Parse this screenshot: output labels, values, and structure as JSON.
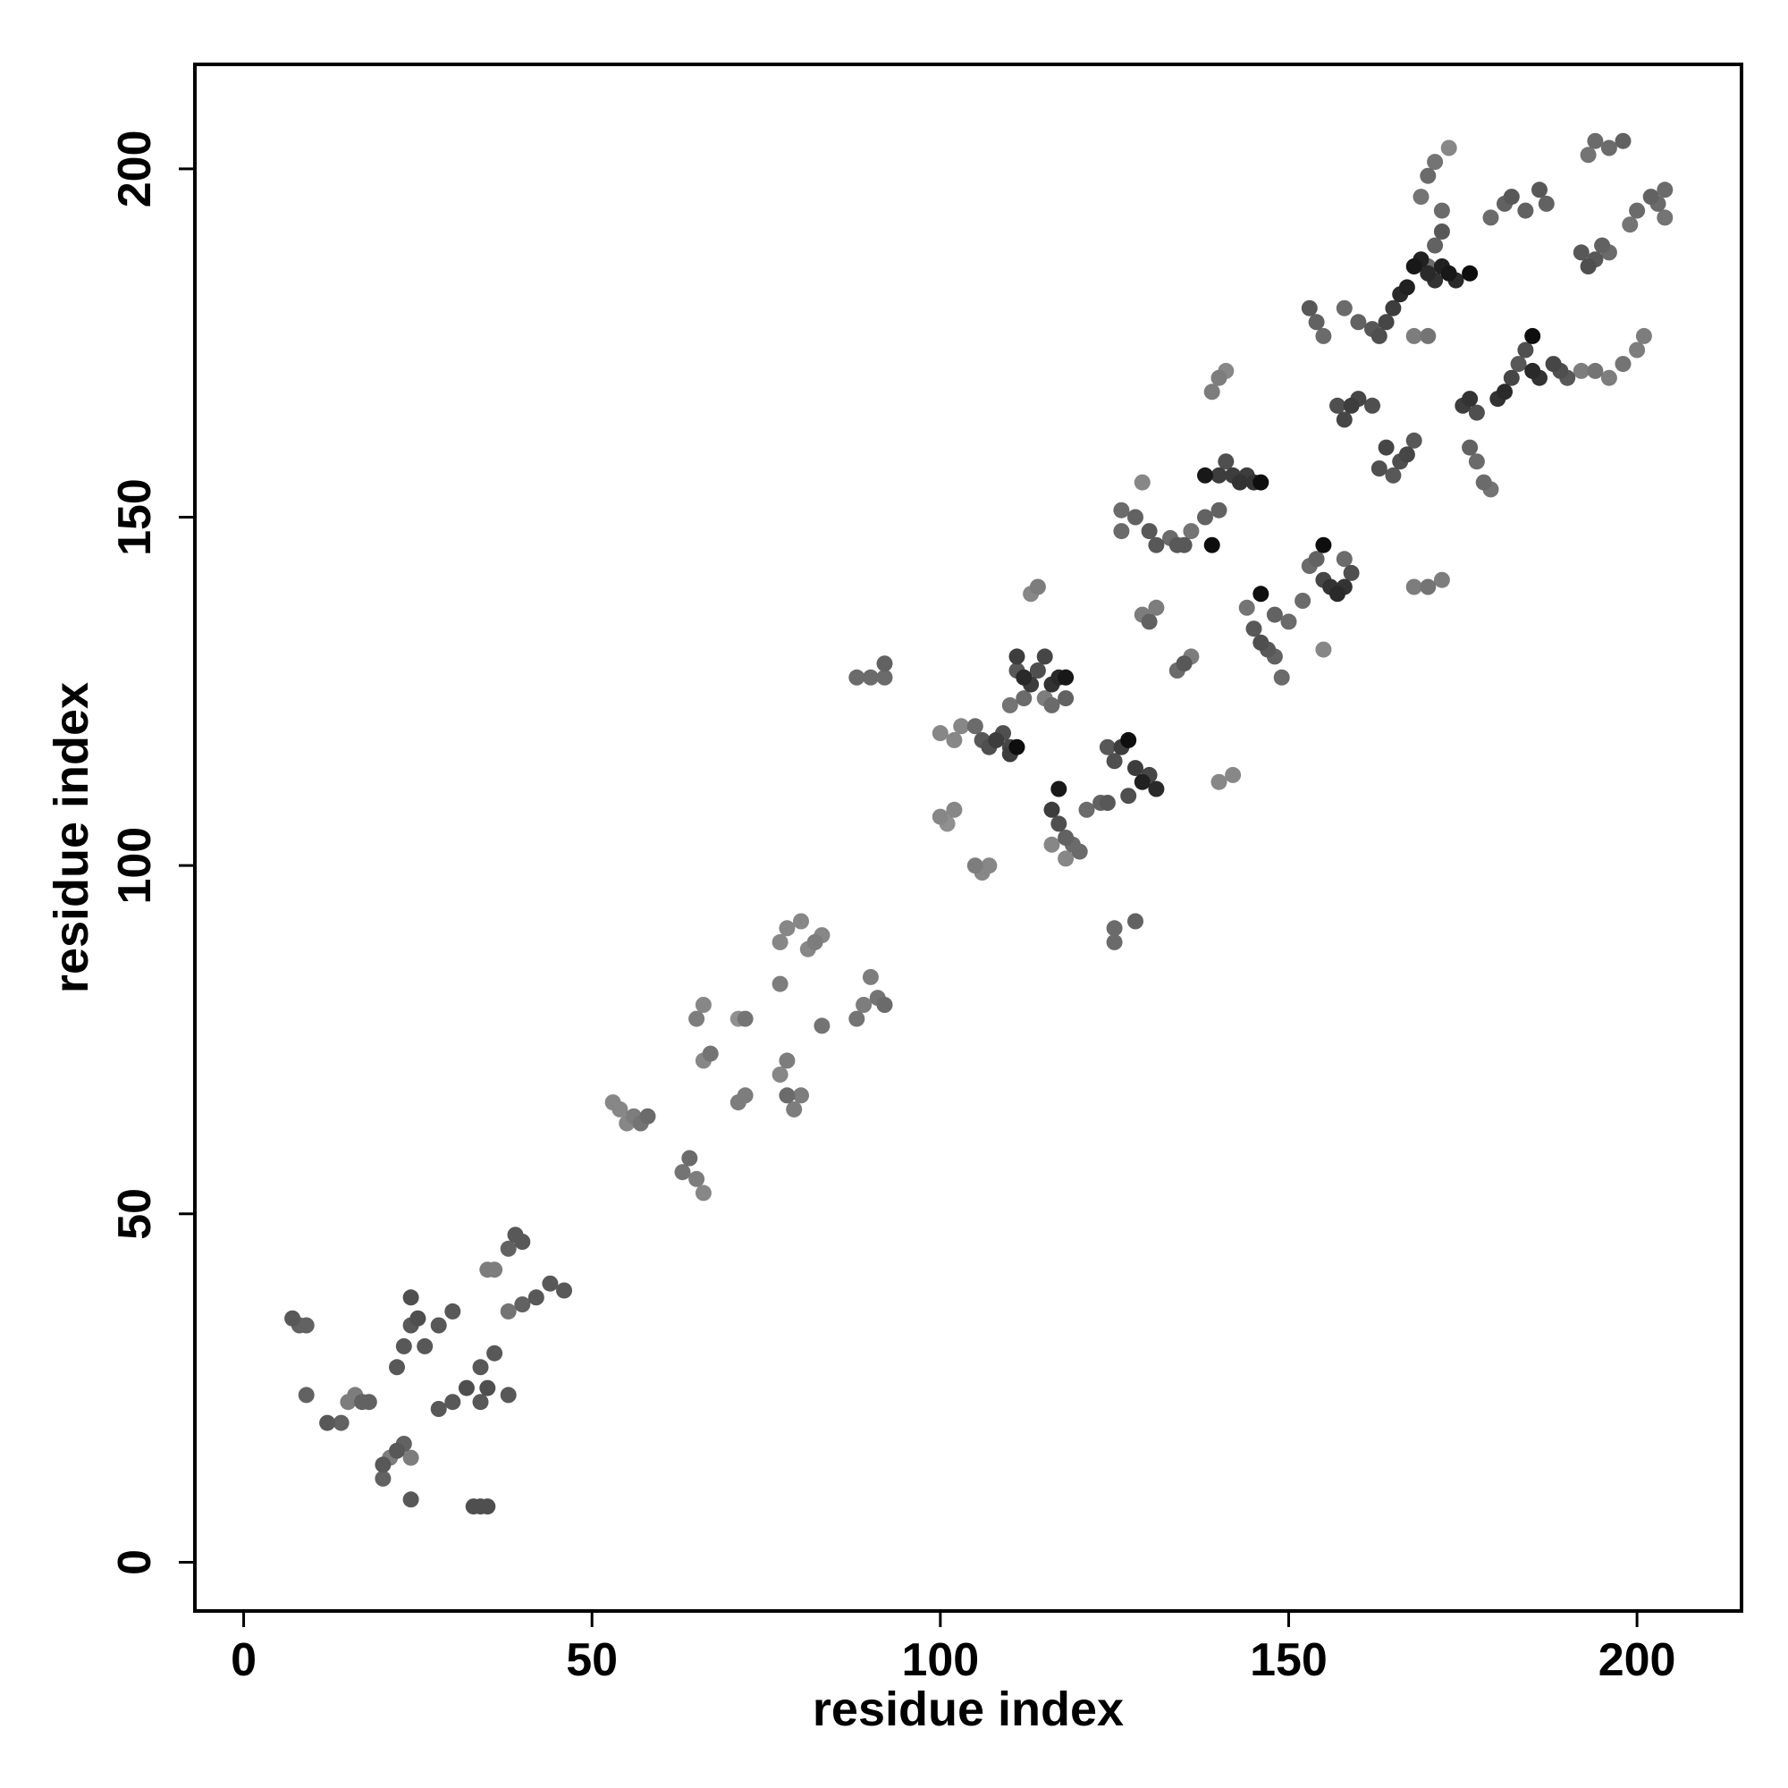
{
  "chart_data": {
    "type": "scatter",
    "title": "",
    "xlabel": "residue index",
    "ylabel": "residue index",
    "xlim": [
      -7,
      215
    ],
    "ylim": [
      -7,
      215
    ],
    "xticks": [
      0,
      50,
      100,
      150,
      200
    ],
    "yticks": [
      0,
      50,
      100,
      150,
      200
    ],
    "grid": false,
    "legend": "none",
    "point_color_scale": "grayscale (light = low, dark = high)",
    "points": [
      [
        7,
        35,
        0.55
      ],
      [
        8,
        34,
        0.5
      ],
      [
        9,
        34,
        0.5
      ],
      [
        9,
        24,
        0.5
      ],
      [
        12,
        20,
        0.55
      ],
      [
        14,
        20,
        0.5
      ],
      [
        15,
        23,
        0.35
      ],
      [
        16,
        24,
        0.35
      ],
      [
        17,
        23,
        0.5
      ],
      [
        18,
        23,
        0.5
      ],
      [
        20,
        12,
        0.5
      ],
      [
        20,
        14,
        0.55
      ],
      [
        21,
        15,
        0.35
      ],
      [
        22,
        16,
        0.55
      ],
      [
        23,
        17,
        0.5
      ],
      [
        24,
        15,
        0.35
      ],
      [
        24,
        9,
        0.55
      ],
      [
        22,
        28,
        0.55
      ],
      [
        23,
        31,
        0.55
      ],
      [
        24,
        34,
        0.55
      ],
      [
        25,
        35,
        0.6
      ],
      [
        24,
        38,
        0.6
      ],
      [
        26,
        31,
        0.55
      ],
      [
        28,
        34,
        0.55
      ],
      [
        30,
        36,
        0.55
      ],
      [
        28,
        22,
        0.55
      ],
      [
        30,
        23,
        0.55
      ],
      [
        32,
        25,
        0.6
      ],
      [
        33,
        8,
        0.6
      ],
      [
        34,
        8,
        0.6
      ],
      [
        35,
        8,
        0.6
      ],
      [
        34,
        23,
        0.55
      ],
      [
        35,
        25,
        0.6
      ],
      [
        34,
        28,
        0.55
      ],
      [
        36,
        30,
        0.55
      ],
      [
        38,
        24,
        0.55
      ],
      [
        35,
        42,
        0.35
      ],
      [
        36,
        42,
        0.35
      ],
      [
        38,
        45,
        0.5
      ],
      [
        39,
        47,
        0.55
      ],
      [
        40,
        46,
        0.55
      ],
      [
        38,
        36,
        0.4
      ],
      [
        40,
        37,
        0.5
      ],
      [
        42,
        38,
        0.55
      ],
      [
        44,
        40,
        0.55
      ],
      [
        46,
        39,
        0.55
      ],
      [
        53,
        66,
        0.3
      ],
      [
        54,
        65,
        0.3
      ],
      [
        55,
        63,
        0.3
      ],
      [
        56,
        64,
        0.35
      ],
      [
        57,
        63,
        0.4
      ],
      [
        58,
        64,
        0.45
      ],
      [
        63,
        56,
        0.4
      ],
      [
        64,
        58,
        0.45
      ],
      [
        65,
        55,
        0.35
      ],
      [
        66,
        53,
        0.3
      ],
      [
        65,
        78,
        0.35
      ],
      [
        66,
        80,
        0.3
      ],
      [
        66,
        72,
        0.3
      ],
      [
        67,
        73,
        0.4
      ],
      [
        71,
        66,
        0.35
      ],
      [
        72,
        67,
        0.35
      ],
      [
        71,
        78,
        0.25
      ],
      [
        72,
        78,
        0.4
      ],
      [
        77,
        83,
        0.35
      ],
      [
        77,
        70,
        0.3
      ],
      [
        78,
        72,
        0.35
      ],
      [
        78,
        67,
        0.45
      ],
      [
        79,
        65,
        0.35
      ],
      [
        80,
        67,
        0.35
      ],
      [
        77,
        89,
        0.3
      ],
      [
        78,
        91,
        0.3
      ],
      [
        80,
        92,
        0.3
      ],
      [
        81,
        88,
        0.3
      ],
      [
        82,
        89,
        0.35
      ],
      [
        83,
        90,
        0.3
      ],
      [
        83,
        77,
        0.4
      ],
      [
        88,
        78,
        0.4
      ],
      [
        89,
        80,
        0.35
      ],
      [
        90,
        84,
        0.35
      ],
      [
        91,
        81,
        0.4
      ],
      [
        92,
        80,
        0.45
      ],
      [
        88,
        127,
        0.45
      ],
      [
        90,
        127,
        0.45
      ],
      [
        92,
        129,
        0.5
      ],
      [
        92,
        127,
        0.45
      ],
      [
        100,
        107,
        0.3
      ],
      [
        101,
        106,
        0.25
      ],
      [
        102,
        108,
        0.3
      ],
      [
        100,
        119,
        0.3
      ],
      [
        102,
        118,
        0.3
      ],
      [
        103,
        120,
        0.3
      ],
      [
        105,
        120,
        0.45
      ],
      [
        106,
        118,
        0.55
      ],
      [
        107,
        117,
        0.6
      ],
      [
        108,
        118,
        0.7
      ],
      [
        109,
        119,
        0.6
      ],
      [
        110,
        117,
        0.65
      ],
      [
        110,
        116,
        0.7
      ],
      [
        111,
        117,
        0.95
      ],
      [
        105,
        100,
        0.35
      ],
      [
        106,
        99,
        0.3
      ],
      [
        107,
        100,
        0.3
      ],
      [
        110,
        123,
        0.4
      ],
      [
        112,
        124,
        0.45
      ],
      [
        111,
        128,
        0.55
      ],
      [
        111,
        130,
        0.7
      ],
      [
        112,
        127,
        0.8
      ],
      [
        113,
        126,
        0.7
      ],
      [
        114,
        128,
        0.6
      ],
      [
        115,
        130,
        0.65
      ],
      [
        116,
        126,
        0.75
      ],
      [
        117,
        127,
        0.8
      ],
      [
        118,
        127,
        0.9
      ],
      [
        113,
        139,
        0.3
      ],
      [
        114,
        140,
        0.35
      ],
      [
        115,
        124,
        0.35
      ],
      [
        116,
        123,
        0.45
      ],
      [
        118,
        124,
        0.5
      ],
      [
        117,
        111,
        0.9
      ],
      [
        116,
        108,
        0.7
      ],
      [
        117,
        106,
        0.6
      ],
      [
        118,
        104,
        0.5
      ],
      [
        119,
        103,
        0.45
      ],
      [
        120,
        102,
        0.45
      ],
      [
        116,
        103,
        0.3
      ],
      [
        118,
        101,
        0.3
      ],
      [
        121,
        108,
        0.45
      ],
      [
        123,
        109,
        0.5
      ],
      [
        124,
        109,
        0.55
      ],
      [
        124,
        117,
        0.55
      ],
      [
        125,
        115,
        0.6
      ],
      [
        126,
        117,
        0.7
      ],
      [
        127,
        118,
        0.95
      ],
      [
        128,
        114,
        0.7
      ],
      [
        129,
        112,
        0.85
      ],
      [
        130,
        113,
        0.65
      ],
      [
        131,
        111,
        0.8
      ],
      [
        127,
        110,
        0.6
      ],
      [
        125,
        91,
        0.45
      ],
      [
        125,
        89,
        0.45
      ],
      [
        128,
        92,
        0.5
      ],
      [
        129,
        136,
        0.35
      ],
      [
        130,
        135,
        0.5
      ],
      [
        131,
        137,
        0.35
      ],
      [
        126,
        151,
        0.45
      ],
      [
        126,
        148,
        0.45
      ],
      [
        128,
        150,
        0.5
      ],
      [
        130,
        148,
        0.55
      ],
      [
        131,
        146,
        0.55
      ],
      [
        133,
        147,
        0.45
      ],
      [
        134,
        146,
        0.55
      ],
      [
        135,
        146,
        0.55
      ],
      [
        129,
        155,
        0.3
      ],
      [
        134,
        128,
        0.45
      ],
      [
        135,
        129,
        0.55
      ],
      [
        136,
        130,
        0.35
      ],
      [
        136,
        148,
        0.4
      ],
      [
        138,
        150,
        0.5
      ],
      [
        139,
        146,
        0.95
      ],
      [
        140,
        151,
        0.5
      ],
      [
        138,
        156,
        0.9
      ],
      [
        140,
        156,
        0.7
      ],
      [
        141,
        158,
        0.6
      ],
      [
        142,
        156,
        0.7
      ],
      [
        143,
        155,
        0.75
      ],
      [
        144,
        156,
        0.7
      ],
      [
        145,
        155,
        0.75
      ],
      [
        146,
        155,
        0.95
      ],
      [
        139,
        168,
        0.35
      ],
      [
        140,
        170,
        0.35
      ],
      [
        141,
        171,
        0.3
      ],
      [
        140,
        112,
        0.3
      ],
      [
        142,
        113,
        0.3
      ],
      [
        144,
        137,
        0.4
      ],
      [
        145,
        134,
        0.55
      ],
      [
        146,
        132,
        0.6
      ],
      [
        147,
        131,
        0.55
      ],
      [
        148,
        130,
        0.5
      ],
      [
        149,
        127,
        0.45
      ],
      [
        146,
        139,
        0.95
      ],
      [
        148,
        136,
        0.5
      ],
      [
        150,
        135,
        0.45
      ],
      [
        152,
        138,
        0.45
      ],
      [
        153,
        143,
        0.45
      ],
      [
        154,
        144,
        0.5
      ],
      [
        155,
        141,
        0.65
      ],
      [
        156,
        140,
        0.75
      ],
      [
        157,
        139,
        0.8
      ],
      [
        155,
        146,
        0.95
      ],
      [
        158,
        140,
        0.75
      ],
      [
        159,
        142,
        0.6
      ],
      [
        158,
        144,
        0.45
      ],
      [
        155,
        131,
        0.3
      ],
      [
        153,
        180,
        0.55
      ],
      [
        154,
        178,
        0.5
      ],
      [
        155,
        176,
        0.45
      ],
      [
        157,
        166,
        0.6
      ],
      [
        158,
        164,
        0.65
      ],
      [
        159,
        166,
        0.7
      ],
      [
        160,
        167,
        0.65
      ],
      [
        162,
        166,
        0.6
      ],
      [
        158,
        180,
        0.45
      ],
      [
        160,
        178,
        0.5
      ],
      [
        162,
        177,
        0.55
      ],
      [
        163,
        176,
        0.6
      ],
      [
        164,
        178,
        0.65
      ],
      [
        165,
        180,
        0.7
      ],
      [
        166,
        182,
        0.8
      ],
      [
        167,
        183,
        0.85
      ],
      [
        168,
        186,
        0.9
      ],
      [
        169,
        187,
        0.85
      ],
      [
        170,
        185,
        0.8
      ],
      [
        171,
        184,
        0.75
      ],
      [
        172,
        186,
        0.85
      ],
      [
        173,
        185,
        0.9
      ],
      [
        174,
        184,
        0.8
      ],
      [
        176,
        185,
        0.95
      ],
      [
        168,
        176,
        0.35
      ],
      [
        170,
        176,
        0.4
      ],
      [
        170,
        186,
        0.45
      ],
      [
        171,
        189,
        0.5
      ],
      [
        172,
        191,
        0.55
      ],
      [
        163,
        157,
        0.6
      ],
      [
        164,
        160,
        0.65
      ],
      [
        165,
        156,
        0.55
      ],
      [
        166,
        158,
        0.6
      ],
      [
        167,
        159,
        0.65
      ],
      [
        168,
        161,
        0.55
      ],
      [
        168,
        140,
        0.35
      ],
      [
        170,
        140,
        0.4
      ],
      [
        172,
        141,
        0.35
      ],
      [
        169,
        196,
        0.4
      ],
      [
        170,
        199,
        0.45
      ],
      [
        171,
        201,
        0.4
      ],
      [
        172,
        194,
        0.45
      ],
      [
        173,
        203,
        0.3
      ],
      [
        175,
        166,
        0.7
      ],
      [
        176,
        167,
        0.75
      ],
      [
        177,
        165,
        0.6
      ],
      [
        176,
        160,
        0.5
      ],
      [
        177,
        158,
        0.45
      ],
      [
        178,
        155,
        0.45
      ],
      [
        179,
        154,
        0.4
      ],
      [
        180,
        167,
        0.75
      ],
      [
        181,
        168,
        0.8
      ],
      [
        182,
        170,
        0.65
      ],
      [
        183,
        172,
        0.55
      ],
      [
        184,
        174,
        0.6
      ],
      [
        185,
        176,
        0.95
      ],
      [
        185,
        171,
        0.8
      ],
      [
        186,
        170,
        0.75
      ],
      [
        188,
        172,
        0.65
      ],
      [
        189,
        171,
        0.6
      ],
      [
        190,
        170,
        0.55
      ],
      [
        179,
        193,
        0.45
      ],
      [
        181,
        195,
        0.5
      ],
      [
        182,
        196,
        0.55
      ],
      [
        184,
        194,
        0.5
      ],
      [
        186,
        197,
        0.55
      ],
      [
        187,
        195,
        0.5
      ],
      [
        192,
        188,
        0.55
      ],
      [
        193,
        186,
        0.6
      ],
      [
        194,
        187,
        0.55
      ],
      [
        195,
        189,
        0.5
      ],
      [
        196,
        188,
        0.45
      ],
      [
        192,
        171,
        0.35
      ],
      [
        194,
        171,
        0.4
      ],
      [
        196,
        170,
        0.35
      ],
      [
        198,
        172,
        0.4
      ],
      [
        200,
        174,
        0.35
      ],
      [
        201,
        176,
        0.35
      ],
      [
        193,
        202,
        0.4
      ],
      [
        194,
        204,
        0.45
      ],
      [
        196,
        203,
        0.45
      ],
      [
        198,
        204,
        0.5
      ],
      [
        199,
        192,
        0.4
      ],
      [
        200,
        194,
        0.45
      ],
      [
        202,
        196,
        0.5
      ],
      [
        203,
        195,
        0.45
      ],
      [
        204,
        197,
        0.45
      ],
      [
        204,
        193,
        0.4
      ]
    ]
  }
}
